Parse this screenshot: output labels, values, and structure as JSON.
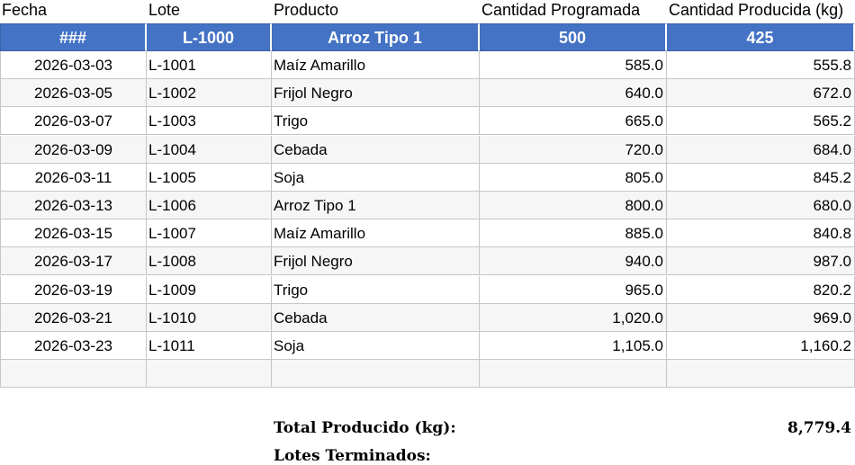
{
  "columns": [
    "Fecha",
    "Lote",
    "Producto",
    "Cantidad Programada",
    "Cantidad Producida (kg)"
  ],
  "header_row": [
    "###",
    "L-1000",
    "Arroz Tipo 1",
    "500",
    "425"
  ],
  "rows": [
    [
      "2026-03-03",
      "L-1001",
      "Maíz Amarillo",
      "585.0",
      "555.8"
    ],
    [
      "2026-03-05",
      "L-1002",
      "Frijol Negro",
      "640.0",
      "672.0"
    ],
    [
      "2026-03-07",
      "L-1003",
      "Trigo",
      "665.0",
      "565.2"
    ],
    [
      "2026-03-09",
      "L-1004",
      "Cebada",
      "720.0",
      "684.0"
    ],
    [
      "2026-03-11",
      "L-1005",
      "Soja",
      "805.0",
      "845.2"
    ],
    [
      "2026-03-13",
      "L-1006",
      "Arroz Tipo 1",
      "800.0",
      "680.0"
    ],
    [
      "2026-03-15",
      "L-1007",
      "Maíz Amarillo",
      "885.0",
      "840.8"
    ],
    [
      "2026-03-17",
      "L-1008",
      "Frijol Negro",
      "940.0",
      "987.0"
    ],
    [
      "2026-03-19",
      "L-1009",
      "Trigo",
      "965.0",
      "820.2"
    ],
    [
      "2026-03-21",
      "L-1010",
      "Cebada",
      "1,020.0",
      "969.0"
    ],
    [
      "2026-03-23",
      "L-1011",
      "Soja",
      "1,105.0",
      "1,160.2"
    ],
    [
      "",
      "",
      "",
      "",
      ""
    ]
  ],
  "summary": {
    "total_label": "Total Producido (kg):",
    "total_value": "8,779.4",
    "lotes_label": "Lotes Terminados:"
  }
}
